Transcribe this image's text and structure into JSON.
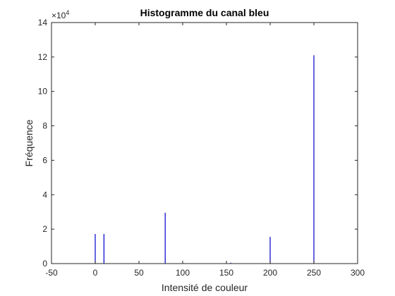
{
  "chart_data": {
    "type": "bar",
    "title": "Histogramme du canal bleu",
    "xlabel": "Intensité de couleur",
    "ylabel": "Fréquence",
    "xlim": [
      -50,
      300
    ],
    "ylim": [
      0,
      14
    ],
    "y_exponent_base": "×10",
    "y_exponent_power": "4",
    "x_ticks": [
      -50,
      0,
      50,
      100,
      150,
      200,
      250,
      300
    ],
    "x_tick_labels": [
      "-50",
      "0",
      "50",
      "100",
      "150",
      "200",
      "250",
      "300"
    ],
    "y_ticks": [
      0,
      2,
      4,
      6,
      8,
      10,
      12,
      14
    ],
    "y_tick_labels": [
      "0",
      "2",
      "4",
      "6",
      "8",
      "10",
      "12",
      "14"
    ],
    "grid": false,
    "box": true,
    "bar_color": "#0000cc",
    "x": [
      0,
      10,
      80,
      155,
      200,
      250
    ],
    "values": [
      1.72,
      1.72,
      2.95,
      0.05,
      1.55,
      12.1
    ]
  }
}
